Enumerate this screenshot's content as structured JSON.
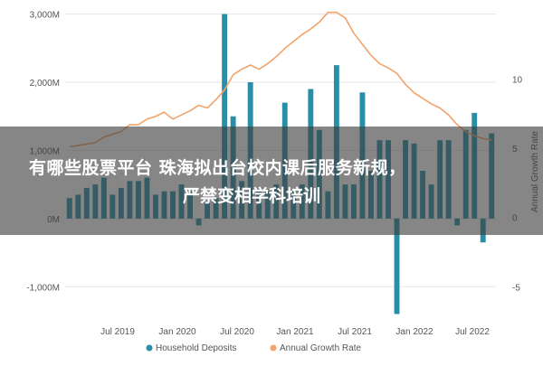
{
  "overlay": {
    "line1": "有哪些股票平台 珠海拟出台校内课后服务新规，",
    "line2": "严禁变相学科培训"
  },
  "chart_data": {
    "type": "bar",
    "title": "",
    "colors": {
      "bars": "#2a8ea8",
      "line": "#f3a36a",
      "grid": "#e6e6e6",
      "text": "#555555"
    },
    "y_left": {
      "ticks": [
        -1000,
        0,
        1000,
        2000,
        3000
      ],
      "labels": [
        "-1,000M",
        "0M",
        "1,000M",
        "2,000M",
        "3,000M"
      ],
      "range": [
        -1500,
        3100
      ]
    },
    "y_right": {
      "ticks": [
        -5,
        0,
        5,
        10
      ],
      "labels": [
        "-5",
        "0",
        "5",
        "10"
      ],
      "range": [
        -7.45,
        15.17
      ],
      "label": "Annual Growth Rate"
    },
    "x_ticks": [
      "Jul 2019",
      "Jan 2020",
      "Jul 2020",
      "Jan 2021",
      "Jul 2021",
      "Jan 2022",
      "Jul 2022"
    ],
    "legend": {
      "position": "bottom",
      "items": [
        "Household Deposits",
        "Annual Growth Rate"
      ]
    },
    "series": [
      {
        "name": "Household Deposits",
        "kind": "bar",
        "values": [
          300,
          350,
          450,
          500,
          600,
          350,
          450,
          550,
          550,
          600,
          350,
          400,
          400,
          500,
          400,
          -100,
          250,
          300,
          3000,
          1500,
          550,
          2000,
          400,
          400,
          500,
          1700,
          400,
          500,
          1900,
          1300,
          400,
          2250,
          500,
          500,
          1850,
          700,
          1150,
          1150,
          -1400,
          1150,
          1100,
          700,
          500,
          1150,
          1150,
          -100,
          1300,
          1550,
          -350,
          1250
        ]
      },
      {
        "name": "Annual Growth Rate",
        "kind": "line",
        "values": [
          5.1,
          5.2,
          5.3,
          5.4,
          5.8,
          6.0,
          6.2,
          6.7,
          6.7,
          7.1,
          7.3,
          7.6,
          7.1,
          7.4,
          7.7,
          8.1,
          7.9,
          8.5,
          9.2,
          10.3,
          10.7,
          11.0,
          10.7,
          11.1,
          11.6,
          12.2,
          12.7,
          13.2,
          13.6,
          14.1,
          14.8,
          14.8,
          14.4,
          13.3,
          12.5,
          11.7,
          11.1,
          10.8,
          10.4,
          9.6,
          9.0,
          8.6,
          8.2,
          7.9,
          7.4,
          6.7,
          6.2,
          5.9,
          5.7,
          5.6
        ]
      }
    ]
  }
}
